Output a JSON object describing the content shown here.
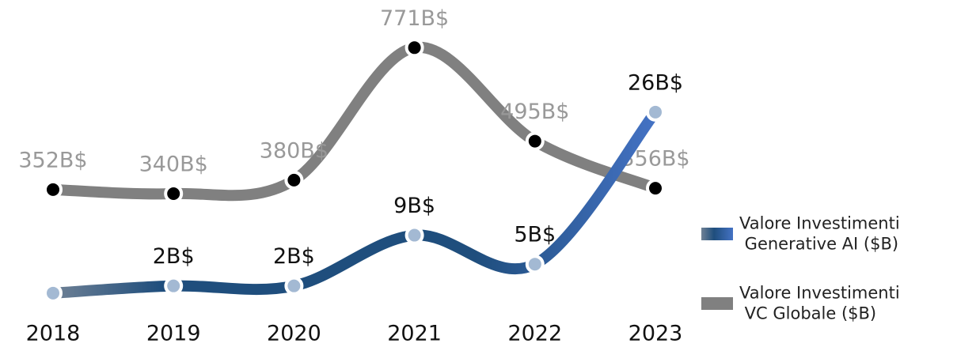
{
  "chart_data": {
    "type": "line",
    "categories": [
      "2018",
      "2019",
      "2020",
      "2021",
      "2022",
      "2023"
    ],
    "series": [
      {
        "name": "Valore Investimenti Generative AI ($B)",
        "color": "#1f4e7d",
        "axis": "y2",
        "values": [
          1,
          2,
          2,
          9,
          5,
          26
        ],
        "value_labels": [
          null,
          "2B$",
          "2B$",
          "9B$",
          "5B$",
          "26B$"
        ]
      },
      {
        "name": "Valore Investimenti VC Globale ($B)",
        "color": "#808080",
        "values": [
          352,
          340,
          380,
          771,
          495,
          356
        ],
        "value_labels": [
          "352B$",
          "340B$",
          "380B$",
          "771B$",
          "495B$",
          "356B$"
        ]
      }
    ],
    "ylim": [
      25,
      865
    ],
    "y2lim": [
      0,
      39.3
    ],
    "legend": "right"
  }
}
